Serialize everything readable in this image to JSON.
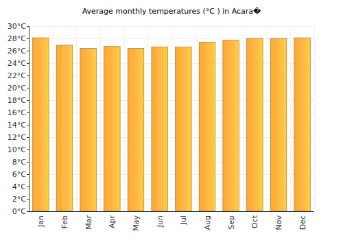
{
  "chart_data": {
    "type": "bar",
    "title": "Average monthly temperatures (°C ) in Acara�",
    "categories": [
      "Jan",
      "Feb",
      "Mar",
      "Apr",
      "May",
      "Jun",
      "Jul",
      "Aug",
      "Sep",
      "Oct",
      "Nov",
      "Dec"
    ],
    "values": [
      28.1,
      26.9,
      26.4,
      26.7,
      26.4,
      26.6,
      26.6,
      27.4,
      27.7,
      28.0,
      28.0,
      28.1
    ],
    "color": "#ffa928",
    "ylim": [
      0,
      30
    ],
    "yticks": [
      {
        "value": 0,
        "label": "0°C"
      },
      {
        "value": 2,
        "label": "2°C"
      },
      {
        "value": 4,
        "label": "4°C"
      },
      {
        "value": 6,
        "label": "6°C"
      },
      {
        "value": 8,
        "label": "8°C"
      },
      {
        "value": 10,
        "label": "10°C"
      },
      {
        "value": 12,
        "label": "12°C"
      },
      {
        "value": 14,
        "label": "14°C"
      },
      {
        "value": 16,
        "label": "16°C"
      },
      {
        "value": 18,
        "label": "18°C"
      },
      {
        "value": 20,
        "label": "20°C"
      },
      {
        "value": 22,
        "label": "22°C"
      },
      {
        "value": 24,
        "label": "24°C"
      },
      {
        "value": 26,
        "label": "26°C"
      },
      {
        "value": 28,
        "label": "28°C"
      },
      {
        "value": 30,
        "label": "30°C"
      }
    ],
    "grid": true
  }
}
